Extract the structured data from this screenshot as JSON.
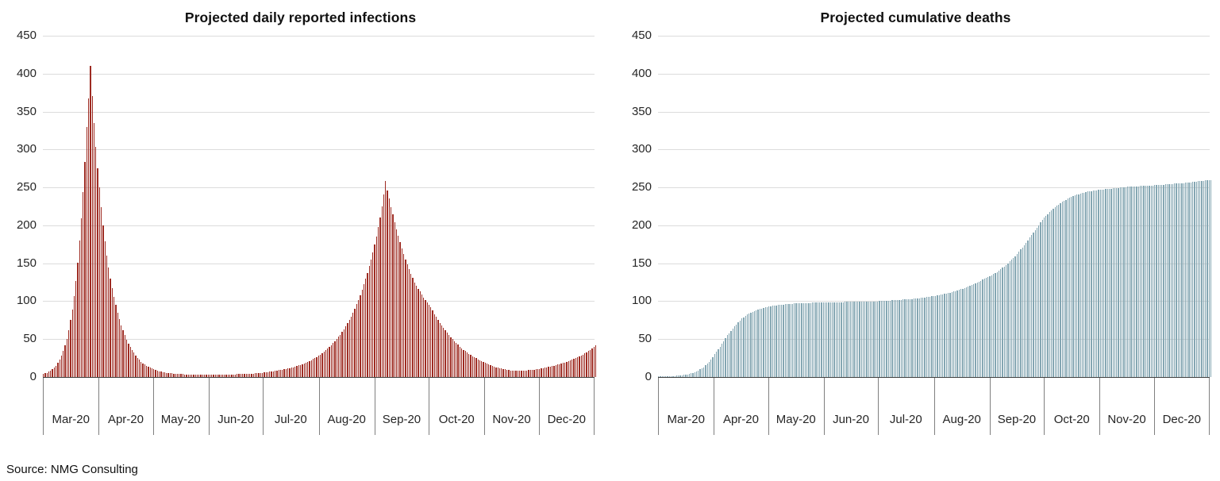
{
  "source_note": "Source: NMG Consulting",
  "colors": {
    "infections_bar": "#9E2B22",
    "deaths_bar": "#84A6B2",
    "gridline": "#DCDCDC",
    "axis_line": "#404040",
    "tick_line": "#7F7F7F",
    "label_text": "#262626",
    "title_text": "#111111"
  },
  "chart_data": [
    {
      "type": "bar",
      "title": "Projected daily reported infections",
      "xlabel": "",
      "ylabel": "",
      "ylim": [
        0,
        450
      ],
      "yticks": [
        0,
        50,
        100,
        150,
        200,
        250,
        300,
        350,
        400,
        450
      ],
      "grid": "horizontal",
      "legend": "none",
      "bar_color": "#9E2B22",
      "categories": [
        "Mar-20",
        "Apr-20",
        "May-20",
        "Jun-20",
        "Jul-20",
        "Aug-20",
        "Sep-20",
        "Oct-20",
        "Nov-20",
        "Dec-20"
      ],
      "month_start_days": [
        0,
        31,
        61,
        92,
        122,
        153,
        184,
        214,
        245,
        275
      ],
      "days_total": 306,
      "interpolation": "log",
      "anchors": [
        [
          0,
          4
        ],
        [
          5,
          10
        ],
        [
          10,
          28
        ],
        [
          15,
          75
        ],
        [
          20,
          180
        ],
        [
          24,
          330
        ],
        [
          26,
          410
        ],
        [
          28,
          335
        ],
        [
          31,
          250
        ],
        [
          35,
          160
        ],
        [
          40,
          95
        ],
        [
          45,
          55
        ],
        [
          50,
          32
        ],
        [
          55,
          18
        ],
        [
          61,
          10
        ],
        [
          68,
          5.5
        ],
        [
          75,
          4
        ],
        [
          85,
          3
        ],
        [
          95,
          3
        ],
        [
          105,
          3.5
        ],
        [
          115,
          4.5
        ],
        [
          122,
          6
        ],
        [
          130,
          9
        ],
        [
          138,
          13
        ],
        [
          145,
          19
        ],
        [
          152,
          28
        ],
        [
          158,
          40
        ],
        [
          164,
          56
        ],
        [
          170,
          80
        ],
        [
          176,
          115
        ],
        [
          181,
          155
        ],
        [
          184,
          185
        ],
        [
          187,
          225
        ],
        [
          189,
          258
        ],
        [
          191,
          235
        ],
        [
          195,
          195
        ],
        [
          200,
          155
        ],
        [
          205,
          125
        ],
        [
          210,
          105
        ],
        [
          214,
          92
        ],
        [
          220,
          68
        ],
        [
          226,
          50
        ],
        [
          232,
          36
        ],
        [
          238,
          26
        ],
        [
          244,
          19
        ],
        [
          250,
          13
        ],
        [
          256,
          9.5
        ],
        [
          261,
          8
        ],
        [
          266,
          8.5
        ],
        [
          272,
          10
        ],
        [
          278,
          13
        ],
        [
          285,
          17
        ],
        [
          292,
          23
        ],
        [
          299,
          31
        ],
        [
          305,
          42
        ]
      ]
    },
    {
      "type": "bar",
      "title": "Projected cumulative deaths",
      "xlabel": "",
      "ylabel": "",
      "ylim": [
        0,
        450
      ],
      "yticks": [
        0,
        50,
        100,
        150,
        200,
        250,
        300,
        350,
        400,
        450
      ],
      "grid": "horizontal",
      "legend": "none",
      "bar_color": "#84A6B2",
      "categories": [
        "Mar-20",
        "Apr-20",
        "May-20",
        "Jun-20",
        "Jul-20",
        "Aug-20",
        "Sep-20",
        "Oct-20",
        "Nov-20",
        "Dec-20"
      ],
      "month_start_days": [
        0,
        31,
        61,
        92,
        122,
        153,
        184,
        214,
        245,
        275
      ],
      "days_total": 306,
      "interpolation": "linear",
      "anchors": [
        [
          0,
          0.5
        ],
        [
          6,
          1
        ],
        [
          12,
          2
        ],
        [
          17,
          4
        ],
        [
          21,
          7
        ],
        [
          25,
          13
        ],
        [
          28,
          20
        ],
        [
          31,
          30
        ],
        [
          34,
          40
        ],
        [
          38,
          55
        ],
        [
          42,
          67
        ],
        [
          46,
          77
        ],
        [
          50,
          84
        ],
        [
          54,
          88
        ],
        [
          58,
          91
        ],
        [
          61,
          93
        ],
        [
          66,
          95
        ],
        [
          72,
          96.5
        ],
        [
          80,
          97.5
        ],
        [
          92,
          98.5
        ],
        [
          105,
          99
        ],
        [
          115,
          99.5
        ],
        [
          122,
          100
        ],
        [
          132,
          101.5
        ],
        [
          140,
          103
        ],
        [
          147,
          105
        ],
        [
          153,
          107
        ],
        [
          159,
          110
        ],
        [
          165,
          114
        ],
        [
          171,
          119
        ],
        [
          177,
          126
        ],
        [
          183,
          133
        ],
        [
          188,
          140
        ],
        [
          193,
          150
        ],
        [
          198,
          162
        ],
        [
          203,
          177
        ],
        [
          208,
          194
        ],
        [
          213,
          210
        ],
        [
          218,
          222
        ],
        [
          223,
          231
        ],
        [
          228,
          238
        ],
        [
          233,
          242
        ],
        [
          238,
          245
        ],
        [
          244,
          247
        ],
        [
          252,
          249
        ],
        [
          260,
          251
        ],
        [
          268,
          252
        ],
        [
          275,
          253
        ],
        [
          283,
          254.5
        ],
        [
          291,
          256
        ],
        [
          298,
          258
        ],
        [
          305,
          260
        ]
      ]
    }
  ]
}
